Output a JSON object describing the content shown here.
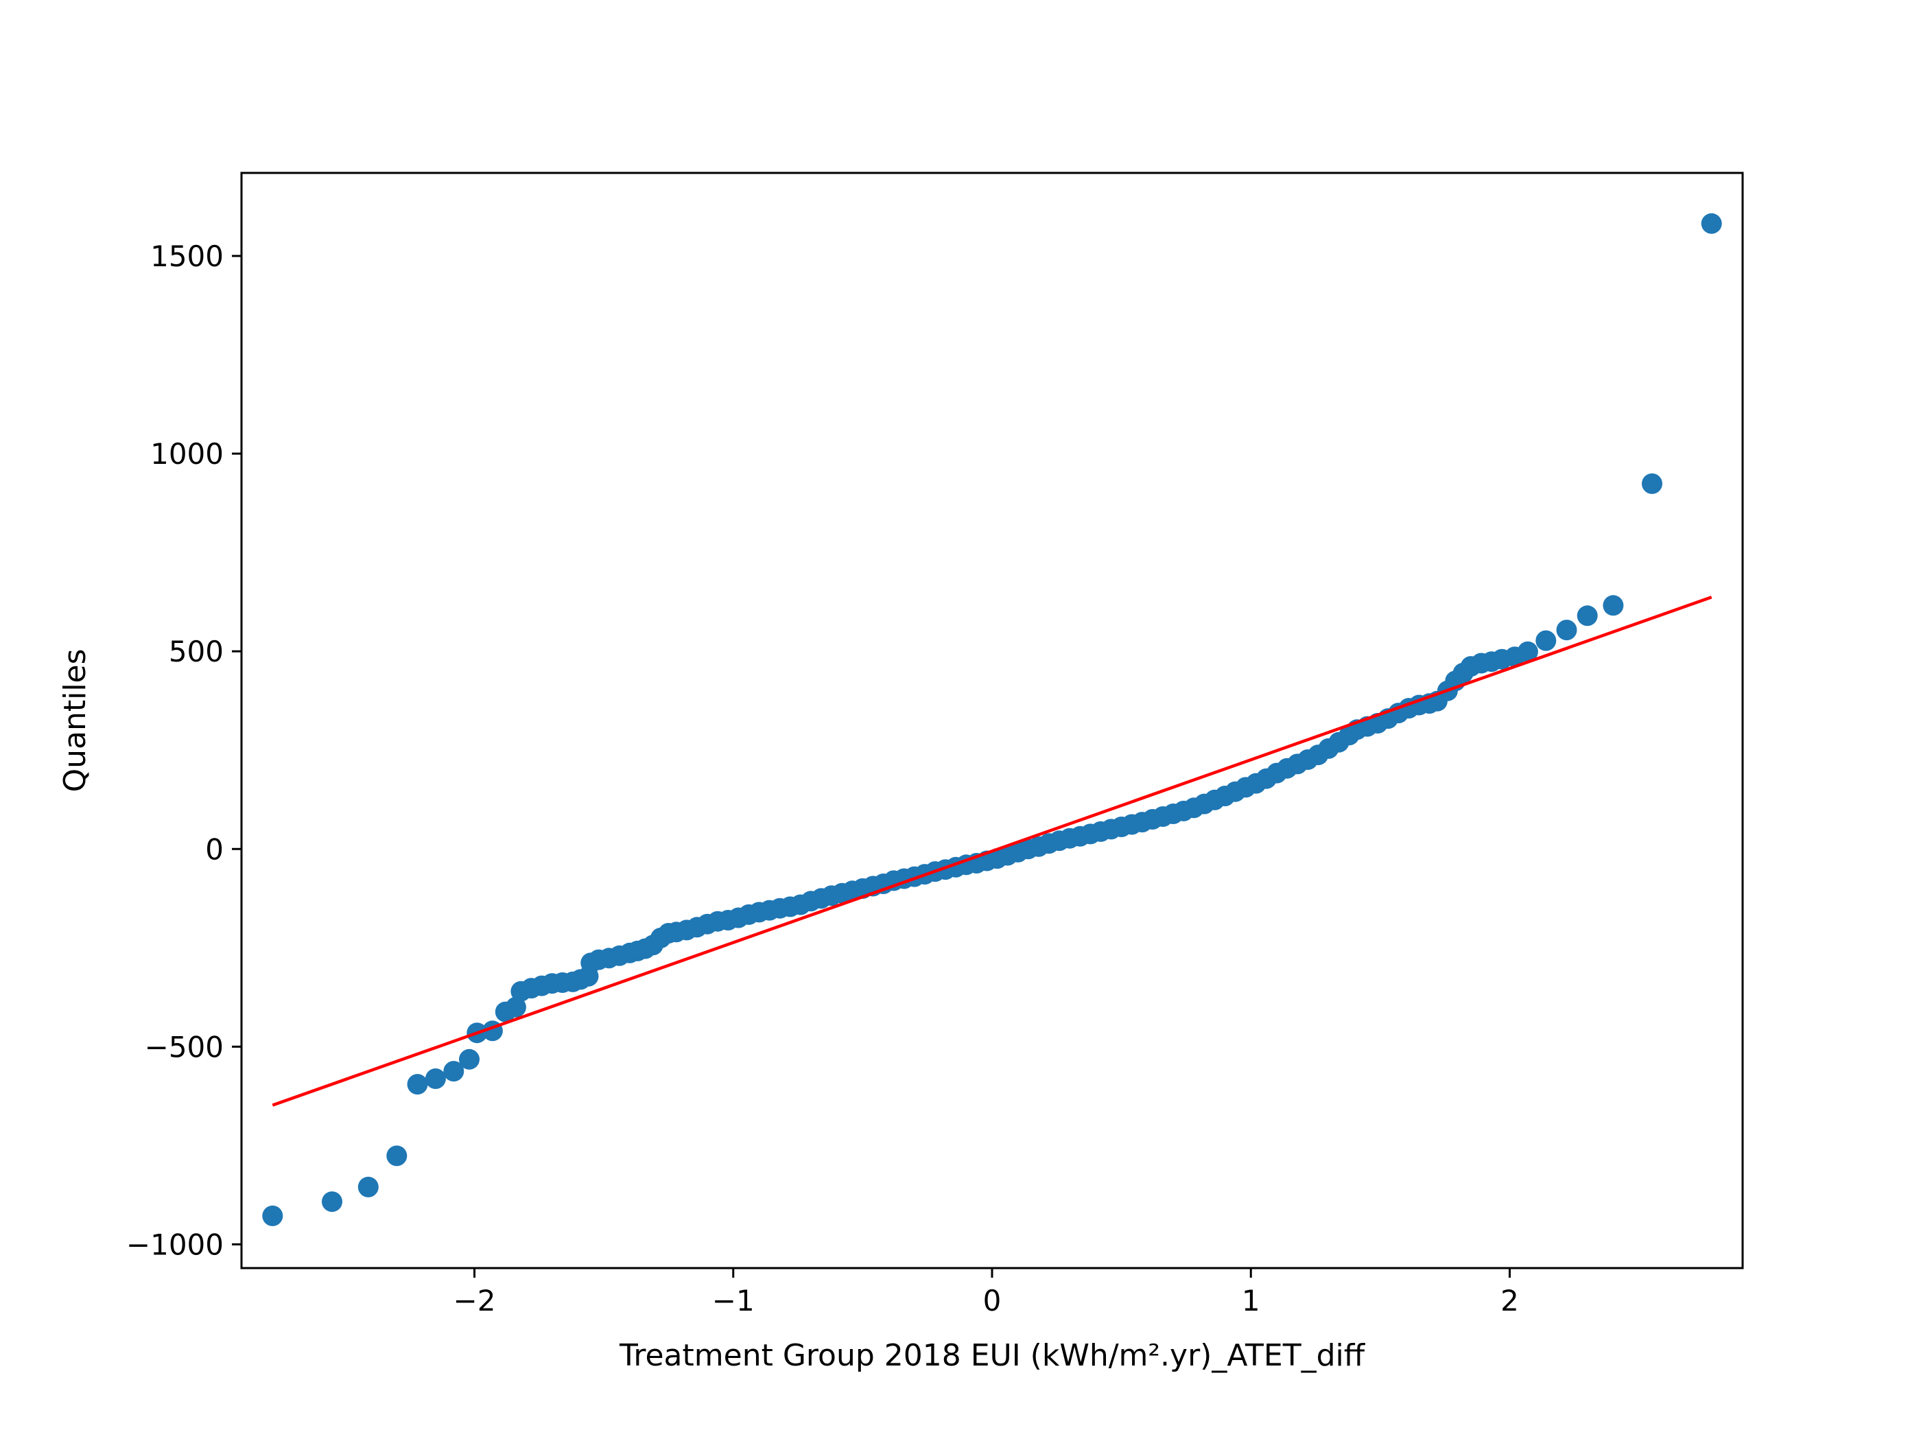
{
  "chart_data": {
    "type": "scatter",
    "title": "",
    "xlabel": "Treatment Group 2018 EUI (kWh/m².yr)_ATET_diff",
    "ylabel": "Quantiles",
    "xlim": [
      -2.9,
      2.9
    ],
    "ylim": [
      -1060,
      1710
    ],
    "x_ticks": [
      -2,
      -1,
      0,
      1,
      2
    ],
    "x_tick_labels": [
      "−2",
      "−1",
      "0",
      "1",
      "2"
    ],
    "y_ticks": [
      -1000,
      -500,
      0,
      500,
      1000,
      1500
    ],
    "y_tick_labels": [
      "−1000",
      "−500",
      "0",
      "500",
      "1000",
      "1500"
    ],
    "grid": false,
    "marker_color": "#1f77b4",
    "reference_line": {
      "color": "#ff0000",
      "points": [
        [
          -2.78,
          -648
        ],
        [
          2.78,
          637
        ]
      ]
    },
    "series": [
      {
        "points": [
          [
            -2.78,
            -928
          ],
          [
            -2.55,
            -892
          ],
          [
            -2.41,
            -855
          ],
          [
            -2.3,
            -776
          ],
          [
            -2.22,
            -595
          ],
          [
            -2.15,
            -581
          ],
          [
            -2.08,
            -562
          ],
          [
            -2.02,
            -532
          ],
          [
            -1.99,
            -465
          ],
          [
            -1.93,
            -460
          ],
          [
            -1.88,
            -412
          ],
          [
            -1.84,
            -400
          ],
          [
            -1.82,
            -360
          ],
          [
            -1.78,
            -352
          ],
          [
            -1.74,
            -346
          ],
          [
            -1.7,
            -340
          ],
          [
            -1.66,
            -338
          ],
          [
            -1.62,
            -336
          ],
          [
            -1.59,
            -330
          ],
          [
            -1.56,
            -322
          ],
          [
            -1.55,
            -288
          ],
          [
            -1.52,
            -280
          ],
          [
            -1.48,
            -276
          ],
          [
            -1.44,
            -270
          ],
          [
            -1.4,
            -263
          ],
          [
            -1.37,
            -258
          ],
          [
            -1.34,
            -252
          ],
          [
            -1.31,
            -243
          ],
          [
            -1.28,
            -225
          ],
          [
            -1.25,
            -213
          ],
          [
            -1.22,
            -210
          ],
          [
            -1.18,
            -205
          ],
          [
            -1.14,
            -198
          ],
          [
            -1.1,
            -190
          ],
          [
            -1.06,
            -183
          ],
          [
            -1.02,
            -180
          ],
          [
            -0.98,
            -174
          ],
          [
            -0.94,
            -166
          ],
          [
            -0.9,
            -160
          ],
          [
            -0.86,
            -155
          ],
          [
            -0.82,
            -150
          ],
          [
            -0.78,
            -146
          ],
          [
            -0.74,
            -141
          ],
          [
            -0.7,
            -132
          ],
          [
            -0.66,
            -125
          ],
          [
            -0.62,
            -118
          ],
          [
            -0.58,
            -112
          ],
          [
            -0.54,
            -106
          ],
          [
            -0.5,
            -100
          ],
          [
            -0.46,
            -94
          ],
          [
            -0.42,
            -88
          ],
          [
            -0.38,
            -80
          ],
          [
            -0.34,
            -75
          ],
          [
            -0.3,
            -70
          ],
          [
            -0.26,
            -64
          ],
          [
            -0.22,
            -57
          ],
          [
            -0.18,
            -52
          ],
          [
            -0.14,
            -46
          ],
          [
            -0.1,
            -40
          ],
          [
            -0.06,
            -36
          ],
          [
            -0.02,
            -30
          ],
          [
            0.02,
            -24
          ],
          [
            0.06,
            -16
          ],
          [
            0.1,
            -8
          ],
          [
            0.14,
            0
          ],
          [
            0.18,
            6
          ],
          [
            0.22,
            14
          ],
          [
            0.26,
            21
          ],
          [
            0.3,
            27
          ],
          [
            0.34,
            32
          ],
          [
            0.38,
            38
          ],
          [
            0.42,
            44
          ],
          [
            0.46,
            50
          ],
          [
            0.5,
            56
          ],
          [
            0.54,
            62
          ],
          [
            0.58,
            68
          ],
          [
            0.62,
            75
          ],
          [
            0.66,
            82
          ],
          [
            0.7,
            89
          ],
          [
            0.74,
            96
          ],
          [
            0.78,
            104
          ],
          [
            0.82,
            114
          ],
          [
            0.86,
            124
          ],
          [
            0.9,
            134
          ],
          [
            0.94,
            145
          ],
          [
            0.98,
            156
          ],
          [
            1.02,
            166
          ],
          [
            1.06,
            178
          ],
          [
            1.1,
            192
          ],
          [
            1.14,
            204
          ],
          [
            1.18,
            215
          ],
          [
            1.22,
            226
          ],
          [
            1.26,
            238
          ],
          [
            1.3,
            254
          ],
          [
            1.34,
            270
          ],
          [
            1.38,
            288
          ],
          [
            1.41,
            302
          ],
          [
            1.45,
            310
          ],
          [
            1.49,
            318
          ],
          [
            1.53,
            330
          ],
          [
            1.57,
            344
          ],
          [
            1.61,
            356
          ],
          [
            1.65,
            364
          ],
          [
            1.69,
            368
          ],
          [
            1.72,
            374
          ],
          [
            1.76,
            400
          ],
          [
            1.79,
            425
          ],
          [
            1.82,
            445
          ],
          [
            1.85,
            462
          ],
          [
            1.89,
            470
          ],
          [
            1.93,
            474
          ],
          [
            1.97,
            480
          ],
          [
            2.02,
            486
          ],
          [
            2.07,
            499
          ],
          [
            2.14,
            527
          ],
          [
            2.22,
            554
          ],
          [
            2.3,
            590
          ],
          [
            2.4,
            616
          ],
          [
            2.55,
            924
          ],
          [
            2.78,
            1582
          ]
        ]
      }
    ]
  }
}
